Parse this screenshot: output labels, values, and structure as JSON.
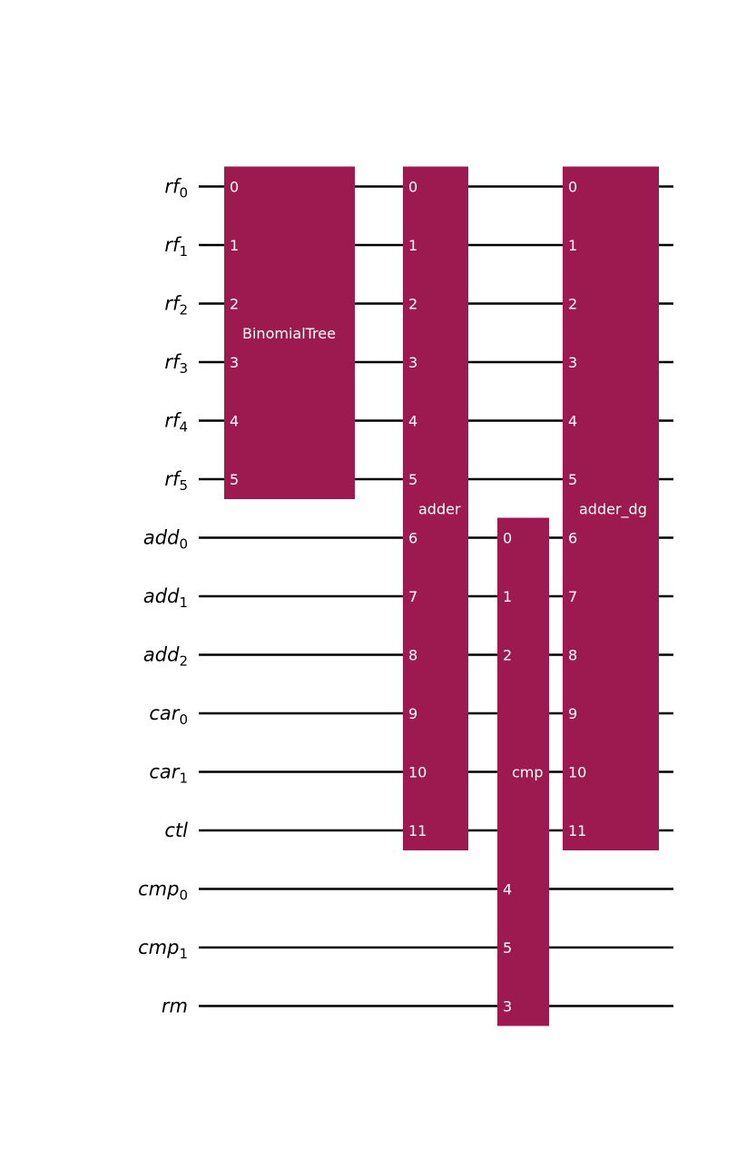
{
  "circuit": {
    "gate_color": "#9C1A4F",
    "wire_color": "#000000",
    "qubits": [
      {
        "name": "rf",
        "index": "0"
      },
      {
        "name": "rf",
        "index": "1"
      },
      {
        "name": "rf",
        "index": "2"
      },
      {
        "name": "rf",
        "index": "3"
      },
      {
        "name": "rf",
        "index": "4"
      },
      {
        "name": "rf",
        "index": "5"
      },
      {
        "name": "add",
        "index": "0"
      },
      {
        "name": "add",
        "index": "1"
      },
      {
        "name": "add",
        "index": "2"
      },
      {
        "name": "car",
        "index": "0"
      },
      {
        "name": "car",
        "index": "1"
      },
      {
        "name": "ctl",
        "index": ""
      },
      {
        "name": "cmp",
        "index": "0"
      },
      {
        "name": "cmp",
        "index": "1"
      },
      {
        "name": "rm",
        "index": ""
      }
    ],
    "gates": [
      {
        "name": "BinomialTree",
        "qubits": [
          0,
          1,
          2,
          3,
          4,
          5
        ],
        "pins": [
          "0",
          "1",
          "2",
          "3",
          "4",
          "5"
        ]
      },
      {
        "name": "adder",
        "qubits": [
          0,
          1,
          2,
          3,
          4,
          5,
          6,
          7,
          8,
          9,
          10,
          11
        ],
        "pins": [
          "0",
          "1",
          "2",
          "3",
          "4",
          "5",
          "6",
          "7",
          "8",
          "9",
          "10",
          "11"
        ]
      },
      {
        "name": "cmp",
        "qubits": [
          6,
          7,
          8,
          12,
          13,
          14
        ],
        "pins": [
          "0",
          "1",
          "2",
          "4",
          "5",
          "3"
        ]
      },
      {
        "name": "adder_dg",
        "qubits": [
          0,
          1,
          2,
          3,
          4,
          5,
          6,
          7,
          8,
          9,
          10,
          11
        ],
        "pins": [
          "0",
          "1",
          "2",
          "3",
          "4",
          "5",
          "6",
          "7",
          "8",
          "9",
          "10",
          "11"
        ]
      }
    ]
  }
}
